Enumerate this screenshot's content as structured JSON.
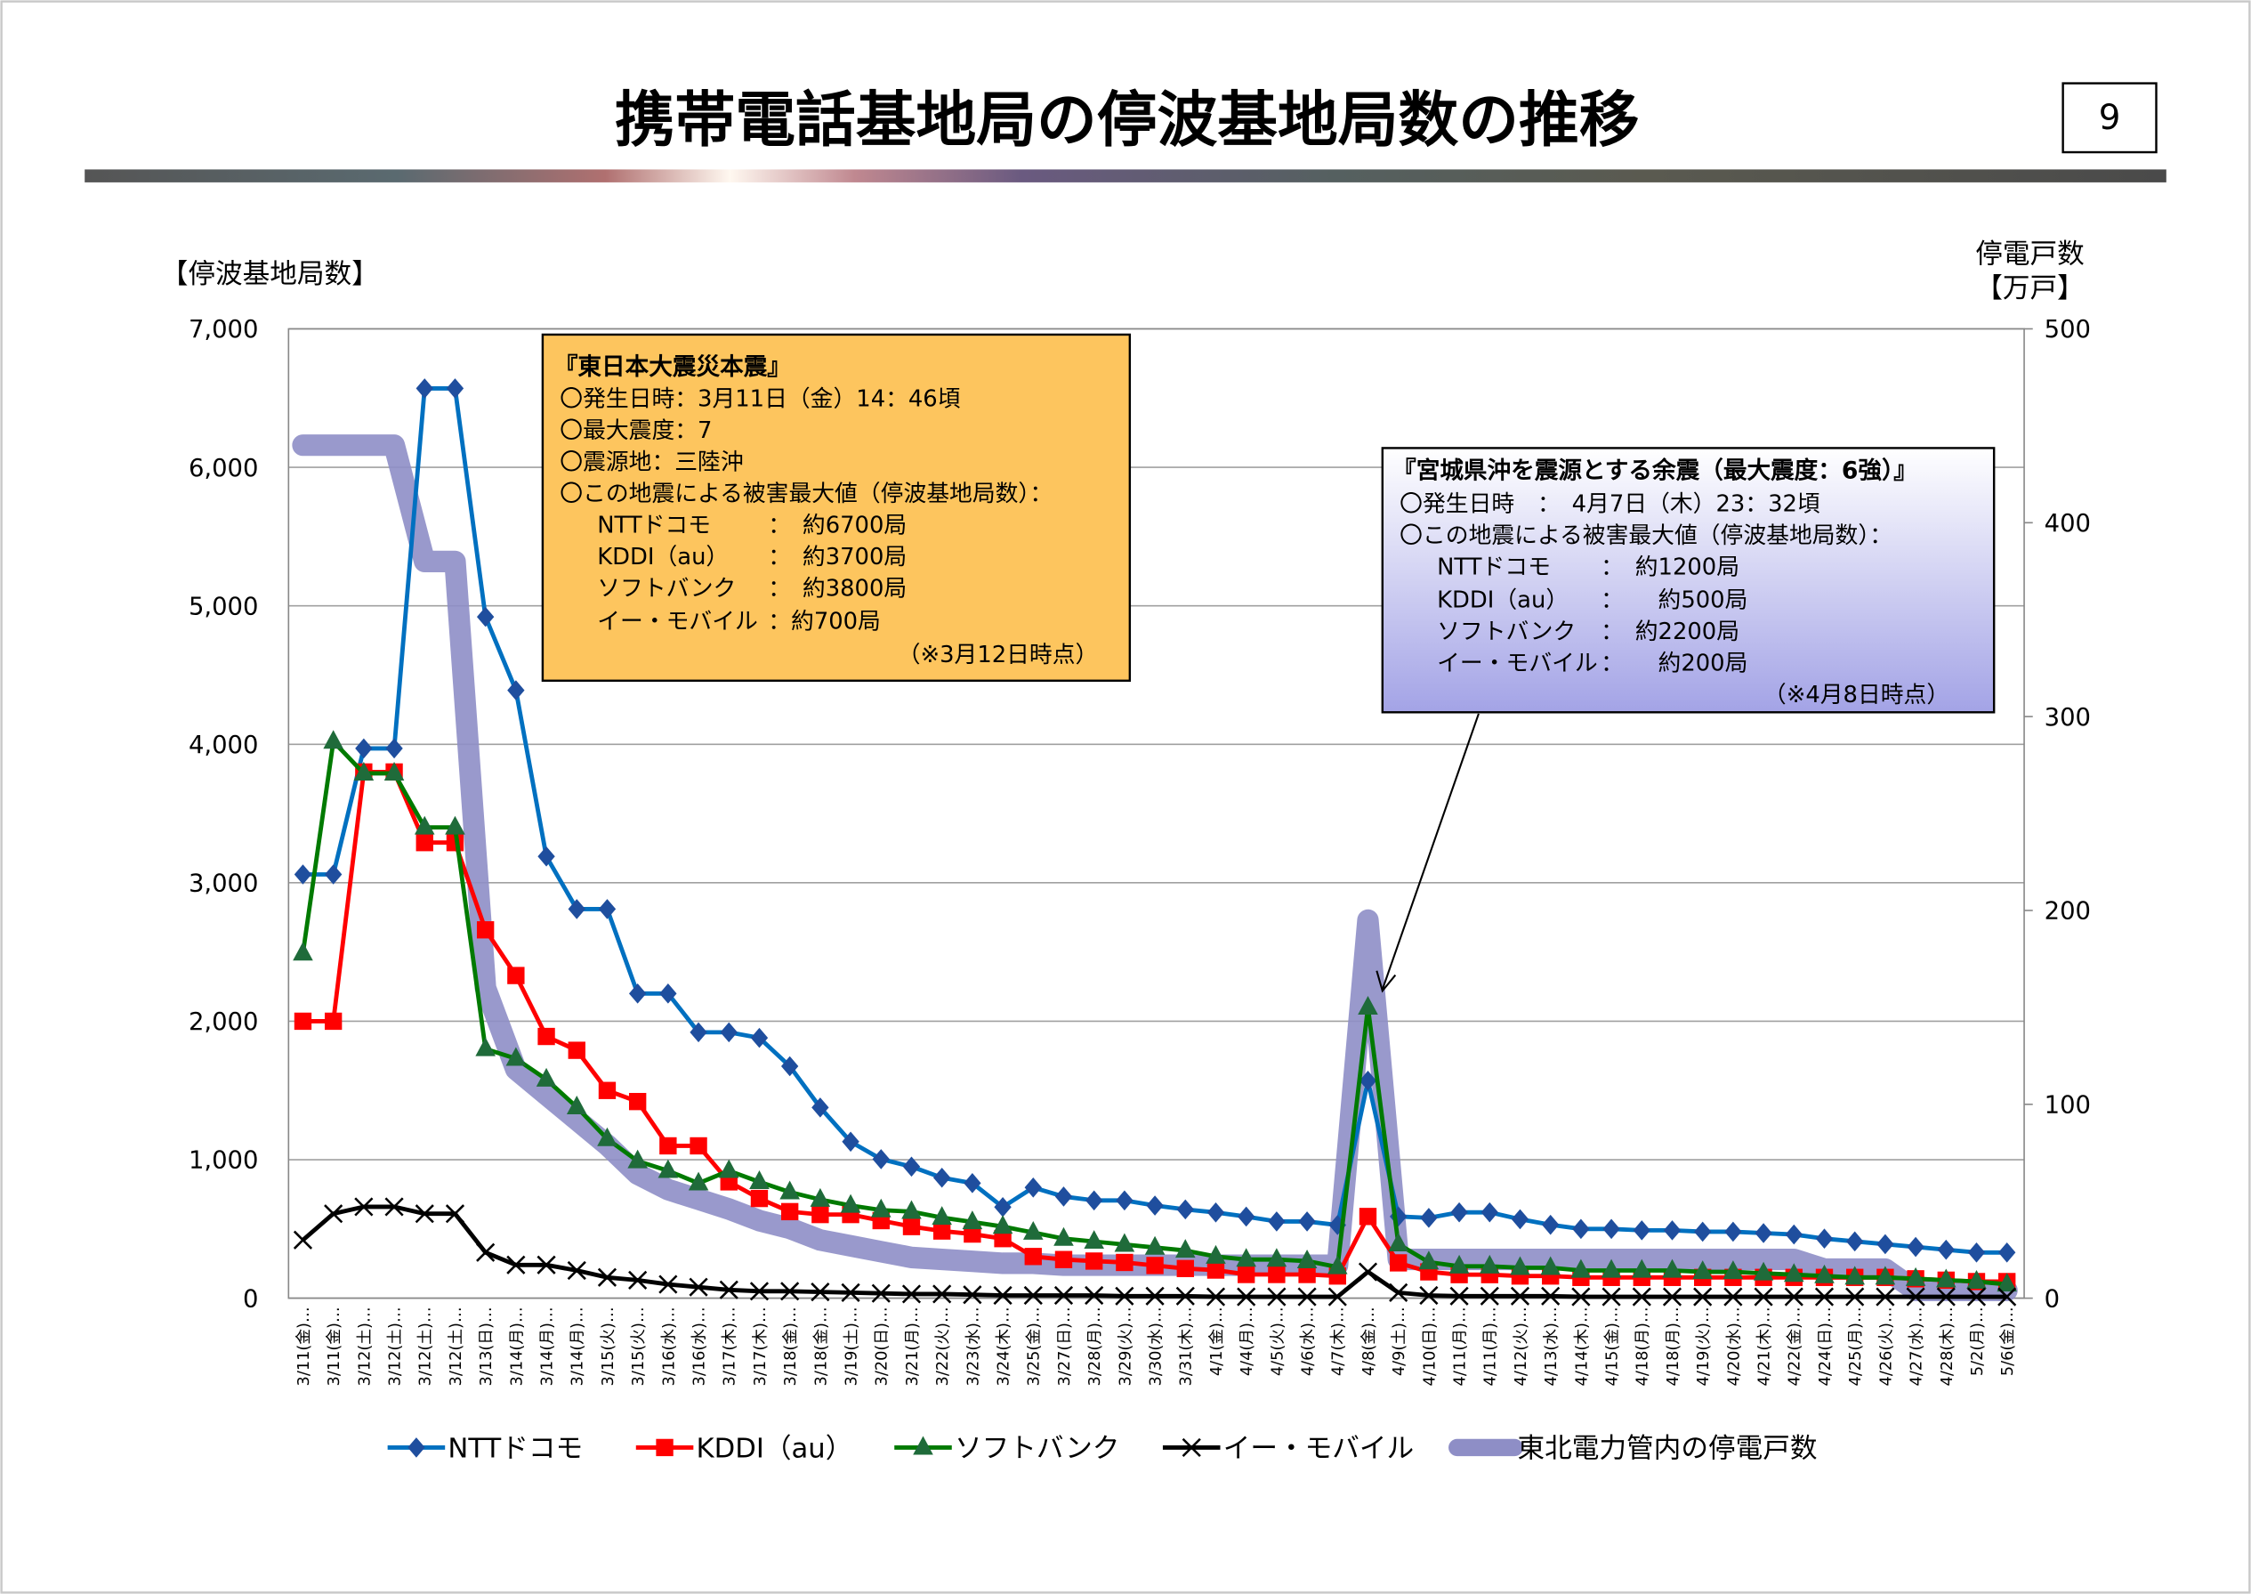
{
  "page": {
    "title": "携帯電話基地局の停波基地局数の推移",
    "page_number": "9"
  },
  "annotations": {
    "main_quake": {
      "heading": "『東日本大震災本震』",
      "lines": [
        "〇発生日時：3月11日（金）14：46頃",
        "〇最大震度：7",
        "〇震源地：三陸沖",
        "〇この地震による被害最大値（停波基地局数）："
      ],
      "items": [
        {
          "carrier": "NTTドコモ",
          "value": "：　約6700局"
        },
        {
          "carrier": "KDDI（au）",
          "value": "：　約3700局"
        },
        {
          "carrier": "ソフトバンク",
          "value": "：　約3800局"
        },
        {
          "carrier": "イー・モバイル",
          "value": "：約700局"
        }
      ],
      "note": "（※3月12日時点）",
      "color": "#FDC55E"
    },
    "aftershock": {
      "heading": "『宮城県沖を震源とする余震（最大震度：6強）』",
      "lines": [
        "〇発生日時　：　4月7日（木）23：32頃",
        "〇この地震による被害最大値（停波基地局数）："
      ],
      "items": [
        {
          "carrier": "NTTドコモ",
          "value": "：　約1200局"
        },
        {
          "carrier": "KDDI（au）",
          "value": "：　　約500局"
        },
        {
          "carrier": "ソフトバンク",
          "value": "：　約2200局"
        },
        {
          "carrier": "イー・モバイル",
          "value": "：　　約200局"
        }
      ],
      "note": "（※4月8日時点）",
      "color_top": "#FFFFFF",
      "color_bottom": "#A3A3E6"
    }
  },
  "chart_data": {
    "type": "line",
    "title": "携帯電話基地局の停波基地局数の推移",
    "ylabel": "【停波基地局数】",
    "y2label": [
      "停電戸数",
      "【万戸】"
    ],
    "ylim": [
      0,
      7000
    ],
    "yticks": [
      "0",
      "1,000",
      "2,000",
      "3,000",
      "4,000",
      "5,000",
      "6,000",
      "7,000"
    ],
    "y2lim": [
      0,
      500
    ],
    "y2ticks": [
      "0",
      "100",
      "200",
      "300",
      "400",
      "500"
    ],
    "grid": true,
    "legend_position": "bottom",
    "categories": [
      "3/11(金)…",
      "3/11(金)…",
      "3/12(土)…",
      "3/12(土)…",
      "3/12(土)…",
      "3/12(土)…",
      "3/13(日)…",
      "3/14(月)…",
      "3/14(月)…",
      "3/14(月)…",
      "3/15(火)…",
      "3/15(火)…",
      "3/16(水)…",
      "3/16(水)…",
      "3/17(木)…",
      "3/17(木)…",
      "3/18(金)…",
      "3/18(金)…",
      "3/19(土)…",
      "3/20(日)…",
      "3/21(月)…",
      "3/22(火)…",
      "3/23(水)…",
      "3/24(木)…",
      "3/25(金)…",
      "3/27(日)…",
      "3/28(月)…",
      "3/29(火)…",
      "3/30(水)…",
      "3/31(木)…",
      "4/1(金)…",
      "4/4(月)…",
      "4/5(火)…",
      "4/6(水)…",
      "4/7(木)…",
      "4/8(金)…",
      "4/9(土)…",
      "4/10(日)…",
      "4/11(月)…",
      "4/11(月)…",
      "4/12(火)…",
      "4/13(水)…",
      "4/14(木)…",
      "4/15(金)…",
      "4/18(月)…",
      "4/18(月)…",
      "4/19(火)…",
      "4/20(水)…",
      "4/21(木)…",
      "4/22(金)…",
      "4/24(日)…",
      "4/25(月)…",
      "4/26(火)…",
      "4/27(水)…",
      "4/28(木)…",
      "5/2(月)…",
      "5/6(金)…"
    ],
    "series": [
      {
        "name": "NTTドコモ",
        "axis": "left",
        "color": "#0070C0",
        "marker": "diamond",
        "marker_color": "#1F4E9E",
        "values": [
          3060,
          3060,
          3970,
          3970,
          6570,
          6570,
          4920,
          4390,
          3190,
          2810,
          2810,
          2200,
          2200,
          1920,
          1920,
          1880,
          1675,
          1377,
          1130,
          1004,
          950,
          870,
          831,
          658,
          799,
          734,
          706,
          706,
          669,
          641,
          619,
          589,
          554,
          554,
          528,
          1570,
          590,
          580,
          620,
          620,
          570,
          530,
          500,
          500,
          490,
          490,
          480,
          480,
          470,
          460,
          430,
          410,
          390,
          370,
          350,
          330,
          330
        ]
      },
      {
        "name": "KDDI（au）",
        "axis": "left",
        "color": "#FF0000",
        "marker": "square",
        "marker_color": "#FF0000",
        "values": [
          2000,
          2000,
          3800,
          3800,
          3290,
          3290,
          2660,
          2330,
          1890,
          1790,
          1500,
          1420,
          1100,
          1100,
          840,
          720,
          625,
          604,
          604,
          560,
          517,
          485,
          463,
          430,
          301,
          279,
          268,
          258,
          236,
          214,
          203,
          171,
          171,
          171,
          160,
          590,
          255,
          190,
          170,
          170,
          160,
          160,
          150,
          150,
          150,
          150,
          150,
          150,
          150,
          150,
          150,
          150,
          150,
          140,
          130,
          120,
          120
        ]
      },
      {
        "name": "ソフトバンク",
        "axis": "left",
        "color": "#007A00",
        "marker": "triangle",
        "marker_color": "#1F6B3A",
        "values": [
          2490,
          4020,
          3790,
          3790,
          3400,
          3400,
          1800,
          1730,
          1580,
          1380,
          1150,
          990,
          920,
          830,
          920,
          840,
          766,
          712,
          669,
          636,
          625,
          582,
          550,
          517,
          474,
          430,
          409,
          387,
          366,
          344,
          301,
          279,
          279,
          268,
          225,
          2100,
          390,
          260,
          230,
          230,
          220,
          220,
          200,
          200,
          200,
          200,
          190,
          190,
          180,
          170,
          160,
          150,
          150,
          140,
          130,
          120,
          100
        ]
      },
      {
        "name": "イー・モバイル",
        "axis": "left",
        "color": "#000000",
        "marker": "x",
        "marker_color": "#000000",
        "values": [
          420,
          610,
          660,
          660,
          610,
          610,
          330,
          240,
          240,
          200,
          150,
          130,
          100,
          80,
          60,
          50,
          50,
          45,
          40,
          35,
          30,
          30,
          25,
          20,
          20,
          20,
          20,
          15,
          15,
          15,
          10,
          10,
          10,
          10,
          10,
          190,
          40,
          20,
          15,
          15,
          15,
          15,
          10,
          10,
          10,
          10,
          10,
          10,
          10,
          10,
          10,
          10,
          10,
          10,
          10,
          10,
          10
        ]
      },
      {
        "name": "東北電力管内の停電戸数",
        "axis": "right",
        "color": "#8E8EC6",
        "marker": "none",
        "values": [
          440,
          440,
          440,
          440,
          380,
          380,
          160,
          118,
          105,
          92,
          79,
          64,
          56,
          51,
          46,
          40,
          36,
          30,
          27,
          24,
          21,
          20,
          19,
          18,
          18,
          17,
          17,
          17,
          17,
          17,
          17,
          17,
          17,
          17,
          17,
          195,
          20,
          20,
          20,
          20,
          20,
          20,
          20,
          20,
          20,
          20,
          20,
          20,
          20,
          20,
          15,
          15,
          15,
          4,
          4,
          4,
          4
        ]
      }
    ]
  }
}
